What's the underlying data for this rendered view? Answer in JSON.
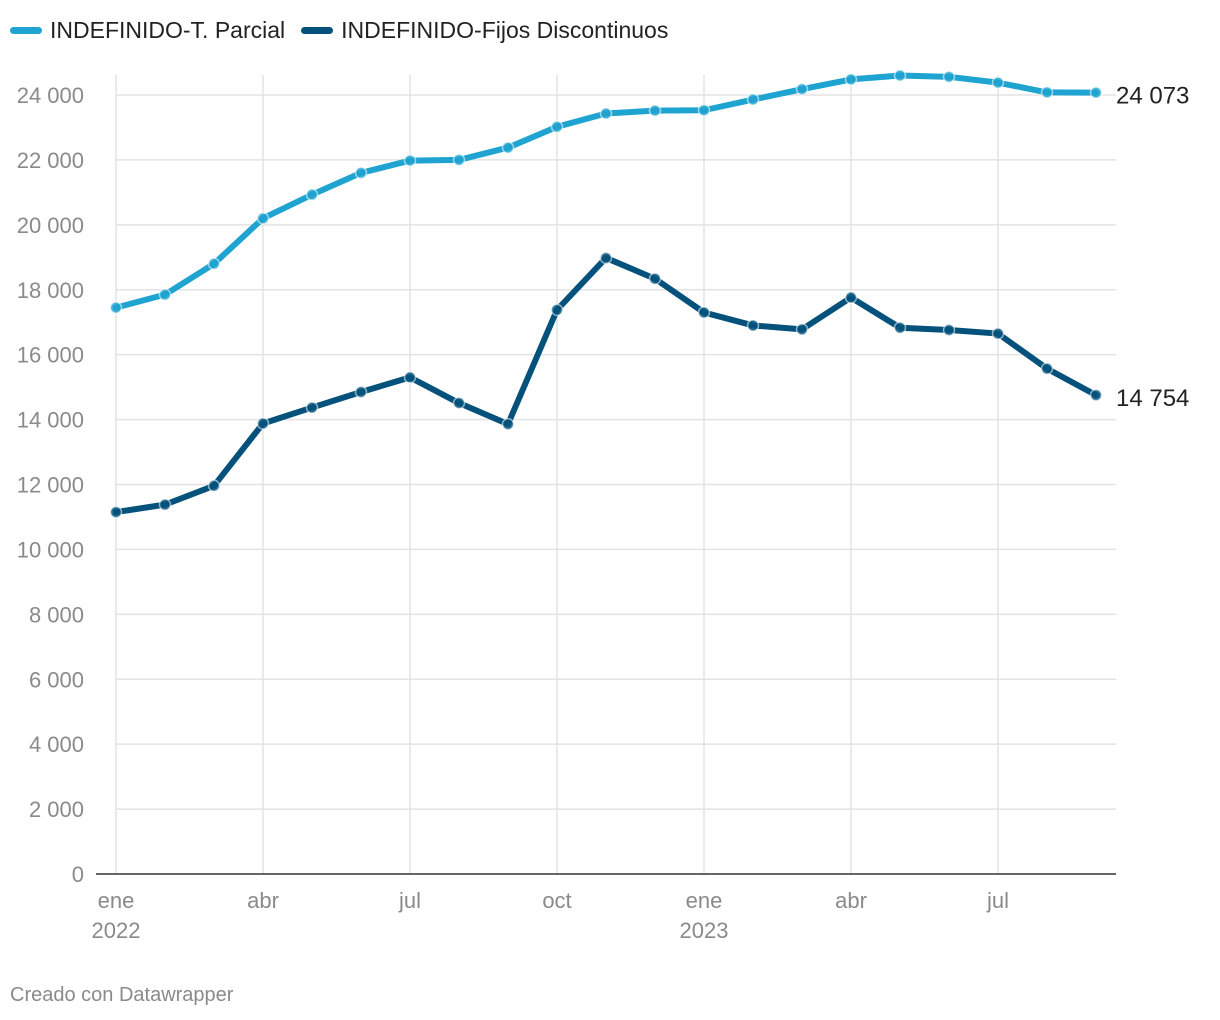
{
  "chart_data": {
    "type": "line",
    "title": "",
    "xlabel": "",
    "ylabel": "",
    "ylim": [
      0,
      24000
    ],
    "yticks": [
      0,
      2000,
      4000,
      6000,
      8000,
      10000,
      12000,
      14000,
      16000,
      18000,
      20000,
      22000,
      24000
    ],
    "ytick_labels": [
      "0",
      "2 000",
      "4 000",
      "6 000",
      "8 000",
      "10 000",
      "12 000",
      "14 000",
      "16 000",
      "18 000",
      "20 000",
      "22 000",
      "24 000"
    ],
    "x": [
      "2022-01",
      "2022-02",
      "2022-03",
      "2022-04",
      "2022-05",
      "2022-06",
      "2022-07",
      "2022-08",
      "2022-09",
      "2022-10",
      "2022-11",
      "2022-12",
      "2023-01",
      "2023-02",
      "2023-03",
      "2023-04",
      "2023-05",
      "2023-06",
      "2023-07",
      "2023-08",
      "2023-09"
    ],
    "xticks": [
      {
        "index": 0,
        "label": "ene",
        "year": "2022"
      },
      {
        "index": 3,
        "label": "abr",
        "year": ""
      },
      {
        "index": 6,
        "label": "jul",
        "year": ""
      },
      {
        "index": 9,
        "label": "oct",
        "year": ""
      },
      {
        "index": 12,
        "label": "ene",
        "year": "2023"
      },
      {
        "index": 15,
        "label": "abr",
        "year": ""
      },
      {
        "index": 18,
        "label": "jul",
        "year": ""
      }
    ],
    "series": [
      {
        "name": "INDEFINIDO-T. Parcial",
        "color": "#1fa3d1",
        "values": [
          17450,
          17850,
          18800,
          20200,
          20930,
          21600,
          21980,
          22000,
          22380,
          23020,
          23430,
          23520,
          23530,
          23860,
          24180,
          24480,
          24600,
          24560,
          24380,
          24080,
          24073
        ],
        "end_label": "24 073"
      },
      {
        "name": "INDEFINIDO-Fijos Discontinuos",
        "color": "#04527c",
        "values": [
          11150,
          11380,
          11960,
          13880,
          14370,
          14850,
          15300,
          14510,
          13860,
          17380,
          18980,
          18340,
          17300,
          16900,
          16780,
          17760,
          16830,
          16760,
          16650,
          15570,
          14754
        ],
        "end_label": "14 754"
      }
    ],
    "legend_position": "top-left",
    "credit": "Creado con Datawrapper"
  }
}
